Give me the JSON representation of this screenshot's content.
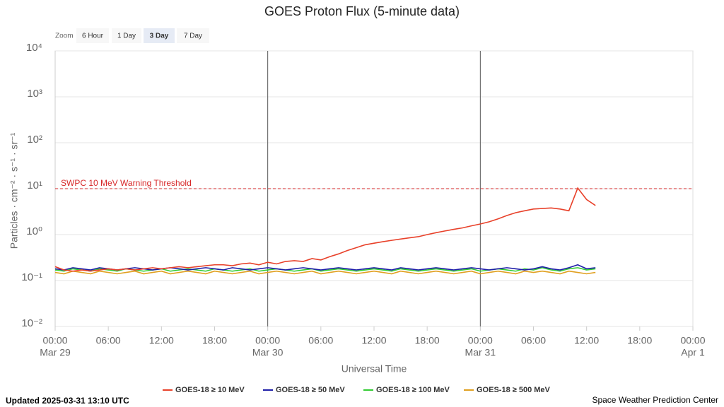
{
  "chart_data": {
    "type": "line",
    "title": "GOES Proton Flux (5-minute data)",
    "zoom": {
      "label": "Zoom",
      "options": [
        "6 Hour",
        "1 Day",
        "3 Day",
        "7 Day"
      ],
      "selected": 2
    },
    "x_label": "Universal Time",
    "y_label": "Particles · cm⁻² · s⁻¹ · sr⁻¹",
    "ylog": true,
    "grid": true,
    "legend": "bottom",
    "ylim": [
      0.01,
      10000
    ],
    "yticks": [
      {
        "value": 0.01,
        "label": "10⁻²"
      },
      {
        "value": 0.1,
        "label": "10⁻¹"
      },
      {
        "value": 1,
        "label": "10⁰"
      },
      {
        "value": 10,
        "label": "10¹"
      },
      {
        "value": 100,
        "label": "10²"
      },
      {
        "value": 1000,
        "label": "10³"
      },
      {
        "value": 10000,
        "label": "10⁴"
      }
    ],
    "xlim": [
      0,
      72
    ],
    "xticks": [
      {
        "value": 0,
        "label": "00:00"
      },
      {
        "value": 6,
        "label": "06:00"
      },
      {
        "value": 12,
        "label": "12:00"
      },
      {
        "value": 18,
        "label": "18:00"
      },
      {
        "value": 24,
        "label": "00:00"
      },
      {
        "value": 30,
        "label": "06:00"
      },
      {
        "value": 36,
        "label": "12:00"
      },
      {
        "value": 42,
        "label": "18:00"
      },
      {
        "value": 48,
        "label": "00:00"
      },
      {
        "value": 54,
        "label": "06:00"
      },
      {
        "value": 60,
        "label": "12:00"
      },
      {
        "value": 66,
        "label": "18:00"
      },
      {
        "value": 72,
        "label": "00:00"
      }
    ],
    "xtick_dates": [
      {
        "value": 0,
        "label": "Mar 29"
      },
      {
        "value": 24,
        "label": "Mar 30"
      },
      {
        "value": 48,
        "label": "Mar 31"
      },
      {
        "value": 72,
        "label": "Apr 1"
      }
    ],
    "day_lines": [
      24,
      48
    ],
    "threshold": {
      "value": 10,
      "label": "SWPC 10 MeV Warning Threshold",
      "color": "#d62728"
    },
    "x": [
      0,
      1,
      2,
      3,
      4,
      5,
      6,
      7,
      8,
      9,
      10,
      11,
      12,
      13,
      14,
      15,
      16,
      17,
      18,
      19,
      20,
      21,
      22,
      23,
      24,
      25,
      26,
      27,
      28,
      29,
      30,
      31,
      32,
      33,
      34,
      35,
      36,
      37,
      38,
      39,
      40,
      41,
      42,
      43,
      44,
      45,
      46,
      47,
      48,
      49,
      50,
      51,
      52,
      53,
      54,
      55,
      56,
      57,
      58,
      59,
      60,
      61
    ],
    "series": [
      {
        "name": "GOES-18 ≥ 10 MeV",
        "color": "#e8412a",
        "values": [
          0.2,
          0.17,
          0.16,
          0.17,
          0.16,
          0.17,
          0.18,
          0.17,
          0.18,
          0.17,
          0.18,
          0.19,
          0.18,
          0.19,
          0.2,
          0.19,
          0.2,
          0.21,
          0.22,
          0.22,
          0.21,
          0.23,
          0.24,
          0.22,
          0.25,
          0.23,
          0.26,
          0.27,
          0.26,
          0.3,
          0.28,
          0.33,
          0.38,
          0.45,
          0.52,
          0.6,
          0.65,
          0.7,
          0.75,
          0.8,
          0.85,
          0.9,
          1.0,
          1.1,
          1.2,
          1.3,
          1.4,
          1.55,
          1.7,
          1.9,
          2.2,
          2.6,
          3.0,
          3.3,
          3.6,
          3.7,
          3.8,
          3.6,
          3.3,
          10.3,
          5.8,
          4.3
        ]
      },
      {
        "name": "GOES-18 ≥ 50 MeV",
        "color": "#1f1fa8",
        "values": [
          0.18,
          0.17,
          0.19,
          0.18,
          0.17,
          0.19,
          0.18,
          0.17,
          0.18,
          0.19,
          0.18,
          0.17,
          0.18,
          0.19,
          0.18,
          0.17,
          0.18,
          0.19,
          0.18,
          0.17,
          0.19,
          0.18,
          0.17,
          0.18,
          0.19,
          0.18,
          0.17,
          0.18,
          0.19,
          0.18,
          0.17,
          0.18,
          0.19,
          0.18,
          0.17,
          0.18,
          0.19,
          0.18,
          0.17,
          0.19,
          0.18,
          0.17,
          0.18,
          0.19,
          0.18,
          0.17,
          0.18,
          0.19,
          0.18,
          0.17,
          0.18,
          0.19,
          0.18,
          0.17,
          0.18,
          0.2,
          0.18,
          0.17,
          0.19,
          0.22,
          0.18,
          0.19
        ]
      },
      {
        "name": "GOES-18 ≥ 100 MeV",
        "color": "#33cc33",
        "values": [
          0.17,
          0.16,
          0.18,
          0.17,
          0.16,
          0.18,
          0.17,
          0.16,
          0.18,
          0.17,
          0.16,
          0.17,
          0.18,
          0.16,
          0.17,
          0.18,
          0.17,
          0.16,
          0.18,
          0.17,
          0.16,
          0.17,
          0.18,
          0.16,
          0.17,
          0.18,
          0.17,
          0.16,
          0.17,
          0.18,
          0.16,
          0.17,
          0.18,
          0.17,
          0.16,
          0.17,
          0.18,
          0.17,
          0.16,
          0.18,
          0.17,
          0.16,
          0.17,
          0.18,
          0.17,
          0.16,
          0.17,
          0.18,
          0.16,
          0.17,
          0.18,
          0.17,
          0.16,
          0.18,
          0.17,
          0.19,
          0.17,
          0.16,
          0.18,
          0.19,
          0.17,
          0.18
        ]
      },
      {
        "name": "GOES-18 ≥ 500 MeV",
        "color": "#e0a020",
        "values": [
          0.15,
          0.14,
          0.16,
          0.15,
          0.14,
          0.16,
          0.15,
          0.14,
          0.15,
          0.16,
          0.14,
          0.15,
          0.16,
          0.14,
          0.15,
          0.16,
          0.15,
          0.14,
          0.16,
          0.15,
          0.14,
          0.15,
          0.16,
          0.14,
          0.15,
          0.16,
          0.15,
          0.14,
          0.15,
          0.16,
          0.14,
          0.15,
          0.16,
          0.15,
          0.14,
          0.15,
          0.16,
          0.15,
          0.14,
          0.16,
          0.15,
          0.14,
          0.15,
          0.16,
          0.15,
          0.14,
          0.15,
          0.16,
          0.14,
          0.15,
          0.16,
          0.15,
          0.14,
          0.16,
          0.15,
          0.16,
          0.15,
          0.14,
          0.16,
          0.15,
          0.14,
          0.15
        ]
      }
    ],
    "footer_left": "Updated 2025-03-31 13:10 UTC",
    "footer_right": "Space Weather Prediction Center"
  }
}
